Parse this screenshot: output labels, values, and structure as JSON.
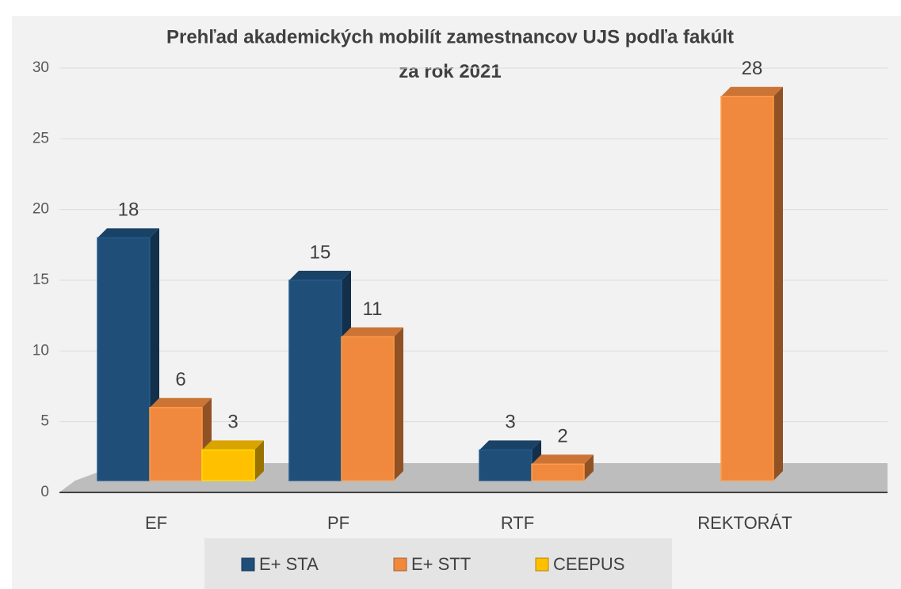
{
  "chart_data": {
    "type": "bar3d",
    "title": "Prehľad akademických mobilít zamestnancov UJS podľa fakúlt za rok 2021",
    "categories": [
      "EF",
      "PF",
      "RTF",
      "REKTORÁT"
    ],
    "series": [
      {
        "name": "E+ STA",
        "color": "#1f4e79",
        "values": [
          18,
          15,
          3,
          null
        ]
      },
      {
        "name": "E+ STT",
        "color": "#f0883e",
        "values": [
          6,
          11,
          2,
          28
        ]
      },
      {
        "name": "CEEPUS",
        "color": "#ffc000",
        "values": [
          3,
          null,
          null,
          null
        ]
      }
    ],
    "ylim": [
      0,
      30
    ],
    "yticks": [
      0,
      5,
      10,
      15,
      20,
      25,
      30
    ],
    "grid": true,
    "legend": "bottom"
  }
}
